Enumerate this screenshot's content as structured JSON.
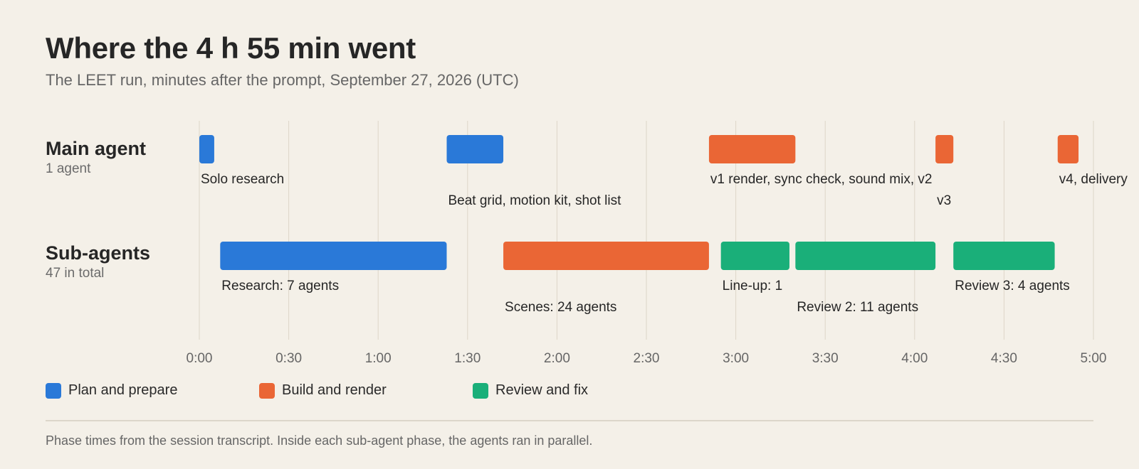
{
  "title": "Where the 4 h 55 min went",
  "subtitle": "The LEET run, minutes after the prompt, September 27, 2026 (UTC)",
  "rows": [
    {
      "name": "Main agent",
      "sub": "1 agent"
    },
    {
      "name": "Sub-agents",
      "sub": "47 in total"
    }
  ],
  "legend": [
    {
      "label": "Plan and prepare",
      "color": "#2a79d8"
    },
    {
      "label": "Build and render",
      "color": "#ea6635"
    },
    {
      "label": "Review and fix",
      "color": "#1aaf79"
    }
  ],
  "footnote": "Phase times from the session transcript. Inside each sub-agent phase, the agents ran in parallel.",
  "chart_data": {
    "type": "timeline",
    "xlabel": "",
    "xlim": [
      0,
      300
    ],
    "x_unit": "minutes",
    "ticks": [
      {
        "value": 0,
        "label": "0:00"
      },
      {
        "value": 30,
        "label": "0:30"
      },
      {
        "value": 60,
        "label": "1:00"
      },
      {
        "value": 90,
        "label": "1:30"
      },
      {
        "value": 120,
        "label": "2:00"
      },
      {
        "value": 150,
        "label": "2:30"
      },
      {
        "value": 180,
        "label": "3:00"
      },
      {
        "value": 210,
        "label": "3:30"
      },
      {
        "value": 240,
        "label": "4:00"
      },
      {
        "value": 270,
        "label": "4:30"
      },
      {
        "value": 300,
        "label": "5:00"
      }
    ],
    "grid": true,
    "categories": [
      "Main agent",
      "Sub-agents"
    ],
    "segments": [
      {
        "row": 0,
        "start": 0,
        "end": 5,
        "phase": "Plan and prepare",
        "label": "Solo research",
        "tier": 0
      },
      {
        "row": 0,
        "start": 83,
        "end": 102,
        "phase": "Plan and prepare",
        "label": "Beat grid, motion kit, shot list",
        "tier": 1
      },
      {
        "row": 0,
        "start": 171,
        "end": 200,
        "phase": "Build and render",
        "label": "v1 render, sync check, sound mix, v2",
        "tier": 0
      },
      {
        "row": 0,
        "start": 247,
        "end": 253,
        "phase": "Build and render",
        "label": "v3",
        "tier": 1
      },
      {
        "row": 0,
        "start": 288,
        "end": 295,
        "phase": "Build and render",
        "label": "v4, delivery",
        "tier": 0
      },
      {
        "row": 1,
        "start": 7,
        "end": 83,
        "phase": "Plan and prepare",
        "label": "Research: 7 agents",
        "tier": 0
      },
      {
        "row": 1,
        "start": 102,
        "end": 171,
        "phase": "Build and render",
        "label": "Scenes: 24 agents",
        "tier": 1
      },
      {
        "row": 1,
        "start": 175,
        "end": 198,
        "phase": "Review and fix",
        "label": "Line-up: 1",
        "tier": 0
      },
      {
        "row": 1,
        "start": 200,
        "end": 247,
        "phase": "Review and fix",
        "label": "Review 2: 11 agents",
        "tier": 1
      },
      {
        "row": 1,
        "start": 253,
        "end": 287,
        "phase": "Review and fix",
        "label": "Review 3: 4 agents",
        "tier": 0
      }
    ]
  }
}
